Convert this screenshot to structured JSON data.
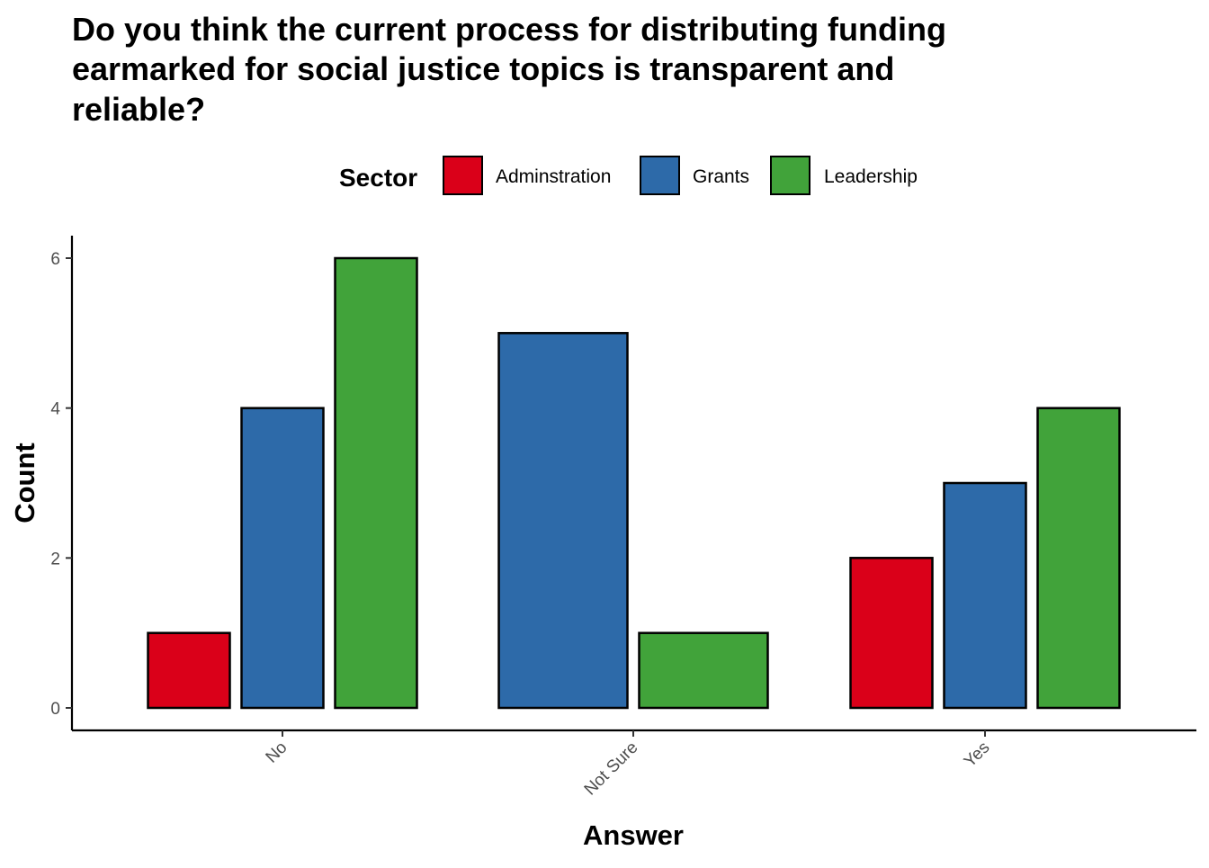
{
  "chart_data": {
    "type": "bar",
    "title": "Do you think the current process for distributing funding earmarked for social justice topics is transparent and reliable?",
    "title_lines": [
      "Do you think the current process for distributing funding",
      "earmarked for social justice topics is transparent and",
      "reliable?"
    ],
    "xlabel": "Answer",
    "ylabel": "Count",
    "categories": [
      "No",
      "Not Sure",
      "Yes"
    ],
    "legend_title": "Sector",
    "legend_position": "top",
    "series": [
      {
        "name": "Adminstration",
        "color": "#DA0019",
        "values": [
          1,
          null,
          2
        ]
      },
      {
        "name": "Grants",
        "color": "#2D6AA9",
        "values": [
          4,
          5,
          3
        ]
      },
      {
        "name": "Leadership",
        "color": "#41A33A",
        "values": [
          6,
          1,
          4
        ]
      }
    ],
    "ylim": [
      0,
      6.3
    ],
    "yticks": [
      0,
      2,
      4,
      6
    ],
    "grid": false,
    "bar_outline_color": "#000000"
  }
}
